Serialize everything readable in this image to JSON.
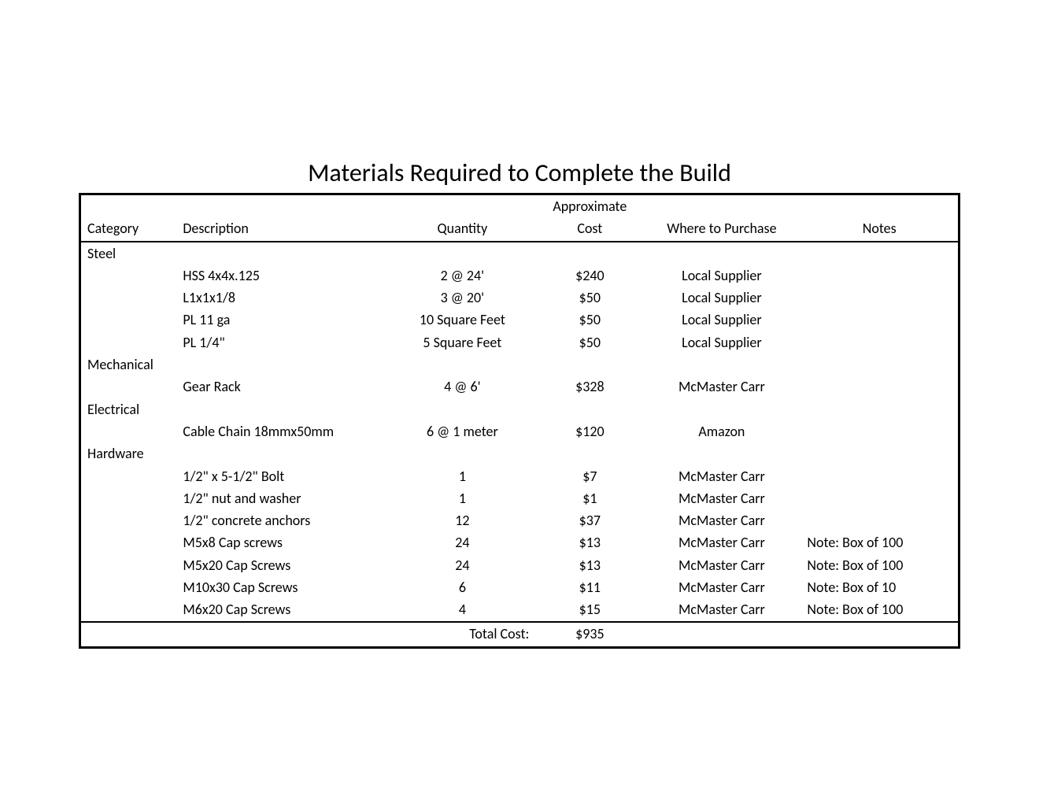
{
  "title": "Materials Required to Complete the Build",
  "headers": {
    "category": "Category",
    "description": "Description",
    "quantity": "Quantity",
    "cost_top": "Approximate",
    "cost_bottom": "Cost",
    "purchase": "Where to Purchase",
    "notes": "Notes"
  },
  "sections": [
    {
      "name": "Steel",
      "rows": [
        {
          "description": "HSS 4x4x.125",
          "quantity": "2 @ 24'",
          "cost": "$240",
          "purchase": "Local Supplier",
          "notes": ""
        },
        {
          "description": "L1x1x1/8",
          "quantity": "3 @ 20'",
          "cost": "$50",
          "purchase": "Local Supplier",
          "notes": ""
        },
        {
          "description": "PL 11 ga",
          "quantity": "10 Square Feet",
          "cost": "$50",
          "purchase": "Local Supplier",
          "notes": ""
        },
        {
          "description": "PL 1/4\"",
          "quantity": "5 Square Feet",
          "cost": "$50",
          "purchase": "Local Supplier",
          "notes": ""
        }
      ]
    },
    {
      "name": "Mechanical",
      "rows": [
        {
          "description": "Gear Rack",
          "quantity": "4 @ 6'",
          "cost": "$328",
          "purchase": "McMaster Carr",
          "notes": ""
        }
      ]
    },
    {
      "name": "Electrical",
      "rows": [
        {
          "description": "Cable Chain 18mmx50mm",
          "quantity": "6 @ 1 meter",
          "cost": "$120",
          "purchase": "Amazon",
          "notes": ""
        }
      ]
    },
    {
      "name": "Hardware",
      "rows": [
        {
          "description": "1/2\" x 5-1/2\" Bolt",
          "quantity": "1",
          "cost": "$7",
          "purchase": "McMaster Carr",
          "notes": ""
        },
        {
          "description": "1/2\" nut and washer",
          "quantity": "1",
          "cost": "$1",
          "purchase": "McMaster Carr",
          "notes": ""
        },
        {
          "description": "1/2\" concrete anchors",
          "quantity": "12",
          "cost": "$37",
          "purchase": "McMaster Carr",
          "notes": ""
        },
        {
          "description": "M5x8 Cap screws",
          "quantity": "24",
          "cost": "$13",
          "purchase": "McMaster Carr",
          "notes": "Note: Box of 100"
        },
        {
          "description": "M5x20 Cap Screws",
          "quantity": "24",
          "cost": "$13",
          "purchase": "McMaster Carr",
          "notes": "Note: Box of 100"
        },
        {
          "description": "M10x30 Cap Screws",
          "quantity": "6",
          "cost": "$11",
          "purchase": "McMaster Carr",
          "notes": "Note: Box of 10"
        },
        {
          "description": "M6x20 Cap Screws",
          "quantity": "4",
          "cost": "$15",
          "purchase": "McMaster Carr",
          "notes": "Note: Box of 100"
        }
      ]
    }
  ],
  "total": {
    "label": "Total Cost:",
    "value": "$935"
  },
  "style": {
    "background_color": "#ffffff",
    "border_color": "#000000",
    "font_family": "Calibri",
    "title_fontsize": 32,
    "body_fontsize": 18,
    "text_color": "#000000"
  }
}
